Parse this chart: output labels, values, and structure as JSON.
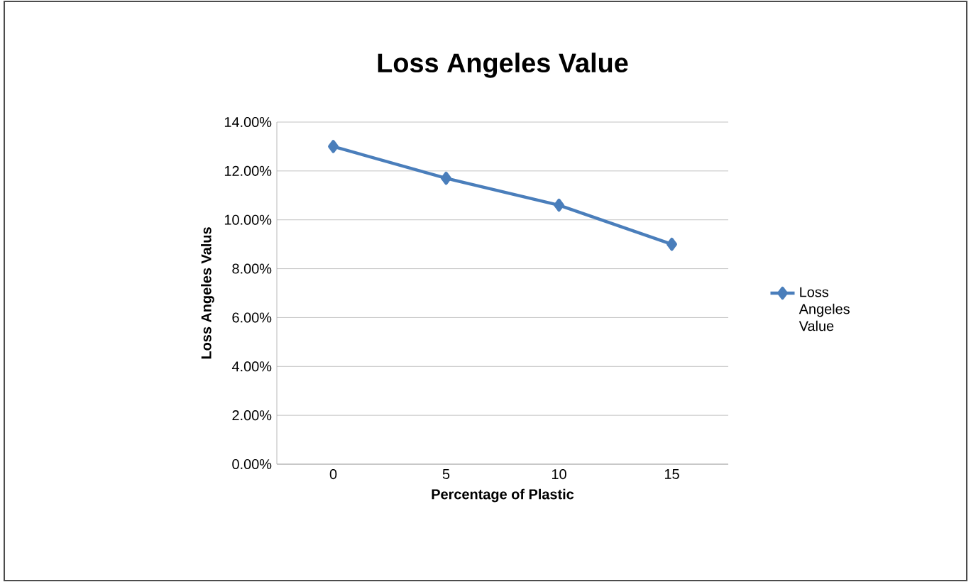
{
  "chart_data": {
    "type": "line",
    "title": "Loss Angeles Value",
    "xlabel": "Percentage of Plastic",
    "ylabel": "Loss Angeles Valus",
    "categories": [
      "0",
      "5",
      "10",
      "15"
    ],
    "series": [
      {
        "name": "Loss Angeles Value",
        "color": "#4a7ebb",
        "values": [
          13.0,
          11.7,
          10.6,
          9.0
        ]
      }
    ],
    "ylim": [
      0,
      14
    ],
    "yticks": [
      {
        "value": 0,
        "label": "0.00%"
      },
      {
        "value": 2,
        "label": "2.00%"
      },
      {
        "value": 4,
        "label": "4.00%"
      },
      {
        "value": 6,
        "label": "6.00%"
      },
      {
        "value": 8,
        "label": "8.00%"
      },
      {
        "value": 10,
        "label": "10.00%"
      },
      {
        "value": 12,
        "label": "12.00%"
      },
      {
        "value": 14,
        "label": "14.00%"
      }
    ],
    "grid": "y",
    "legend": "right",
    "marker": "diamond",
    "line_style": "solid"
  }
}
